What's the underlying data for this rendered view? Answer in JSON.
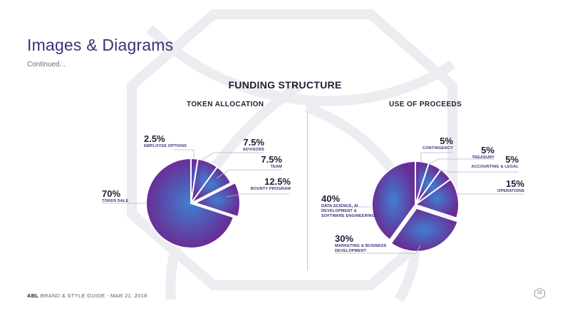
{
  "slide": {
    "title": "Images & Diagrams",
    "subtitle": "Continued...",
    "heading": "FUNDING STRUCTURE"
  },
  "footer": {
    "brand": "ABL",
    "text": "BRAND & STYLE GUIDE - MAR 21, 2018",
    "page_number": "25"
  },
  "colors": {
    "pie_gradient_inner": "#3f7fd0",
    "pie_gradient_outer": "#6a2c95",
    "label_text": "#3e2f7a",
    "leader_line": "#b9b5c6",
    "watermark": "#ececf1"
  },
  "chart_data": [
    {
      "type": "pie",
      "title": "TOKEN ALLOCATION",
      "slices": [
        {
          "label": "EMPLOYEE OPTIONS",
          "value": 2.5,
          "pct": "2.5%",
          "exploded": false
        },
        {
          "label": "ADVISORS",
          "value": 7.5,
          "pct": "7.5%",
          "exploded": false
        },
        {
          "label": "TEAM",
          "value": 7.5,
          "pct": "7.5%",
          "exploded": false
        },
        {
          "label": "BOUNTY PROGRAM",
          "value": 12.5,
          "pct": "12.5%",
          "exploded": true
        },
        {
          "label": "TOKEN SALE",
          "value": 70,
          "pct": "70%",
          "exploded": false
        }
      ]
    },
    {
      "type": "pie",
      "title": "USE OF PROCEEDS",
      "slices": [
        {
          "label": "CONTINGENCY",
          "value": 5,
          "pct": "5%",
          "exploded": false
        },
        {
          "label": "TREASURY",
          "value": 5,
          "pct": "5%",
          "exploded": false
        },
        {
          "label": "ACCOUNTING & LEGAL",
          "value": 5,
          "pct": "5%",
          "exploded": false
        },
        {
          "label": "OPERATIONS",
          "value": 15,
          "pct": "15%",
          "exploded": false
        },
        {
          "label": "MARKETING & BUSINESS DEVELOPMENT",
          "value": 30,
          "pct": "30%",
          "exploded": true
        },
        {
          "label": "DATA SCIENCE, AI DEVELOPMENT & SOFTWARE ENGINEERING",
          "value": 40,
          "pct": "40%",
          "exploded": false
        }
      ]
    }
  ]
}
